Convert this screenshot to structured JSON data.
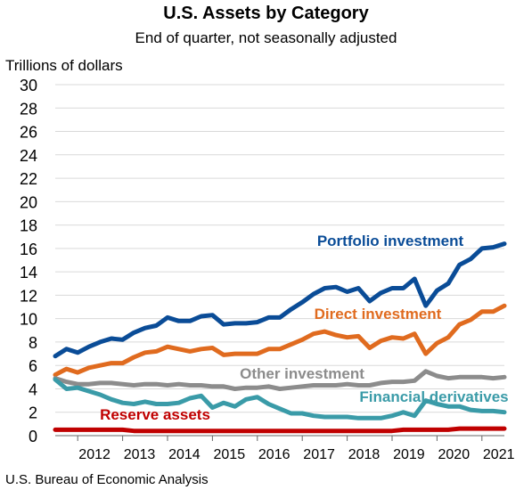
{
  "chart_data": {
    "type": "line",
    "title": "U.S. Assets by Category",
    "subtitle": "End of quarter, not seasonally adjusted",
    "ylabel": "Trillions of dollars",
    "source": "U.S. Bureau of Economic Analysis",
    "ylim": [
      0,
      30
    ],
    "yticks": [
      0,
      2,
      4,
      6,
      8,
      10,
      12,
      14,
      16,
      18,
      20,
      22,
      24,
      26,
      28,
      30
    ],
    "xlim": [
      2011.5,
      2021.5
    ],
    "xtick_labels": [
      "2012",
      "2013",
      "2014",
      "2015",
      "2016",
      "2017",
      "2018",
      "2019",
      "2020",
      "2021"
    ],
    "grid": true,
    "x": [
      2011.5,
      2011.75,
      2012.0,
      2012.25,
      2012.5,
      2012.75,
      2013.0,
      2013.25,
      2013.5,
      2013.75,
      2014.0,
      2014.25,
      2014.5,
      2014.75,
      2015.0,
      2015.25,
      2015.5,
      2015.75,
      2016.0,
      2016.25,
      2016.5,
      2016.75,
      2017.0,
      2017.25,
      2017.5,
      2017.75,
      2018.0,
      2018.25,
      2018.5,
      2018.75,
      2019.0,
      2019.25,
      2019.5,
      2019.75,
      2020.0,
      2020.25,
      2020.5,
      2020.75,
      2021.0,
      2021.25,
      2021.5
    ],
    "series": [
      {
        "name": "Portfolio investment",
        "color": "#0a4c97",
        "values": [
          6.8,
          7.4,
          7.1,
          7.6,
          8.0,
          8.3,
          8.2,
          8.8,
          9.2,
          9.4,
          10.1,
          9.8,
          9.8,
          10.2,
          10.3,
          9.5,
          9.6,
          9.6,
          9.7,
          10.1,
          10.1,
          10.8,
          11.4,
          12.1,
          12.6,
          12.7,
          12.3,
          12.6,
          11.5,
          12.2,
          12.6,
          12.6,
          13.4,
          11.1,
          12.4,
          13.0,
          14.6,
          15.1,
          16.0,
          16.1,
          16.4
        ],
        "label_color": "#0a4c97"
      },
      {
        "name": "Direct investment",
        "color": "#e06b1f",
        "values": [
          5.2,
          5.7,
          5.4,
          5.8,
          6.0,
          6.2,
          6.2,
          6.7,
          7.1,
          7.2,
          7.6,
          7.4,
          7.2,
          7.4,
          7.5,
          6.9,
          7.0,
          7.0,
          7.0,
          7.4,
          7.4,
          7.8,
          8.2,
          8.7,
          8.9,
          8.6,
          8.4,
          8.5,
          7.5,
          8.1,
          8.4,
          8.3,
          8.7,
          7.0,
          7.9,
          8.4,
          9.5,
          9.9,
          10.6,
          10.6,
          11.1
        ],
        "label_color": "#e06b1f"
      },
      {
        "name": "Other investment",
        "color": "#8c8c8c",
        "values": [
          4.9,
          4.6,
          4.4,
          4.4,
          4.5,
          4.5,
          4.4,
          4.3,
          4.4,
          4.4,
          4.3,
          4.4,
          4.3,
          4.3,
          4.2,
          4.2,
          4.0,
          4.1,
          4.1,
          4.2,
          4.0,
          4.1,
          4.2,
          4.3,
          4.3,
          4.3,
          4.4,
          4.3,
          4.3,
          4.5,
          4.6,
          4.6,
          4.7,
          5.5,
          5.1,
          4.9,
          5.0,
          5.0,
          5.0,
          4.9,
          5.0
        ],
        "label_color": "#8c8c8c"
      },
      {
        "name": "Financial derivatives",
        "color": "#3a9ba8",
        "values": [
          4.8,
          4.0,
          4.1,
          3.8,
          3.5,
          3.1,
          2.8,
          2.7,
          2.9,
          2.7,
          2.7,
          2.8,
          3.2,
          3.4,
          2.4,
          2.8,
          2.5,
          3.1,
          3.3,
          2.7,
          2.3,
          1.9,
          1.9,
          1.7,
          1.6,
          1.6,
          1.6,
          1.5,
          1.5,
          1.5,
          1.7,
          2.0,
          1.7,
          3.0,
          2.7,
          2.5,
          2.5,
          2.2,
          2.1,
          2.1,
          2.0
        ],
        "label_color": "#3a9ba8"
      },
      {
        "name": "Reserve assets",
        "color": "#c00000",
        "values": [
          0.5,
          0.5,
          0.5,
          0.5,
          0.5,
          0.5,
          0.5,
          0.4,
          0.4,
          0.4,
          0.4,
          0.4,
          0.4,
          0.4,
          0.4,
          0.4,
          0.4,
          0.4,
          0.4,
          0.4,
          0.4,
          0.4,
          0.4,
          0.4,
          0.4,
          0.4,
          0.4,
          0.4,
          0.4,
          0.4,
          0.4,
          0.5,
          0.5,
          0.5,
          0.5,
          0.5,
          0.6,
          0.6,
          0.6,
          0.6,
          0.6
        ],
        "label_color": "#c00000"
      }
    ],
    "legend": "inline labels"
  }
}
